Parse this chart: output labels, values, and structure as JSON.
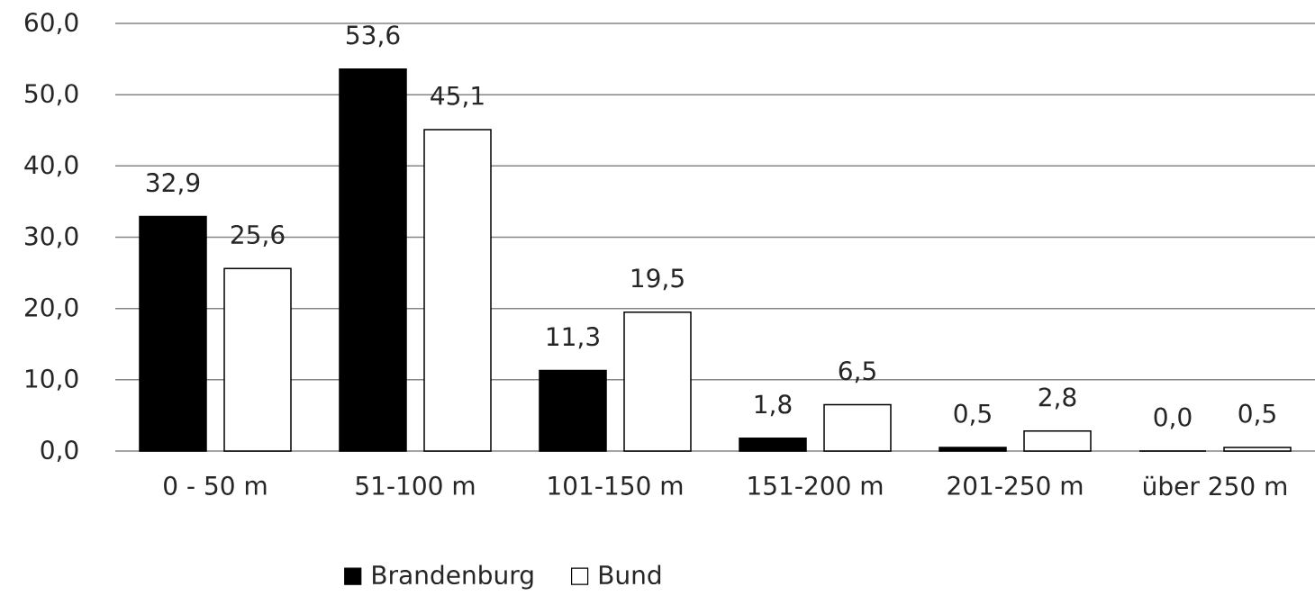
{
  "chart_data": {
    "type": "bar",
    "categories": [
      "0 - 50 m",
      "51-100 m",
      "101-150 m",
      "151-200 m",
      "201-250 m",
      "über 250 m"
    ],
    "series": [
      {
        "name": "Brandenburg",
        "color": "#000000",
        "values": [
          32.9,
          53.6,
          11.3,
          1.8,
          0.5,
          0.0
        ],
        "value_labels": [
          "32,9",
          "53,6",
          "11,3",
          "1,8",
          "0,5",
          "0,0"
        ]
      },
      {
        "name": "Bund",
        "color": "#ffffff",
        "values": [
          25.6,
          45.1,
          19.5,
          6.5,
          2.8,
          0.5
        ],
        "value_labels": [
          "25,6",
          "45,1",
          "19,5",
          "6,5",
          "2,8",
          "0,5"
        ]
      }
    ],
    "ylim": [
      0,
      60
    ],
    "yticks": [
      {
        "value": 0,
        "label": "0,0"
      },
      {
        "value": 10,
        "label": "10,0"
      },
      {
        "value": 20,
        "label": "20,0"
      },
      {
        "value": 30,
        "label": "30,0"
      },
      {
        "value": 40,
        "label": "40,0"
      },
      {
        "value": 50,
        "label": "50,0"
      },
      {
        "value": 60,
        "label": "60,0"
      }
    ],
    "grid": "y",
    "legend": "bottom"
  }
}
